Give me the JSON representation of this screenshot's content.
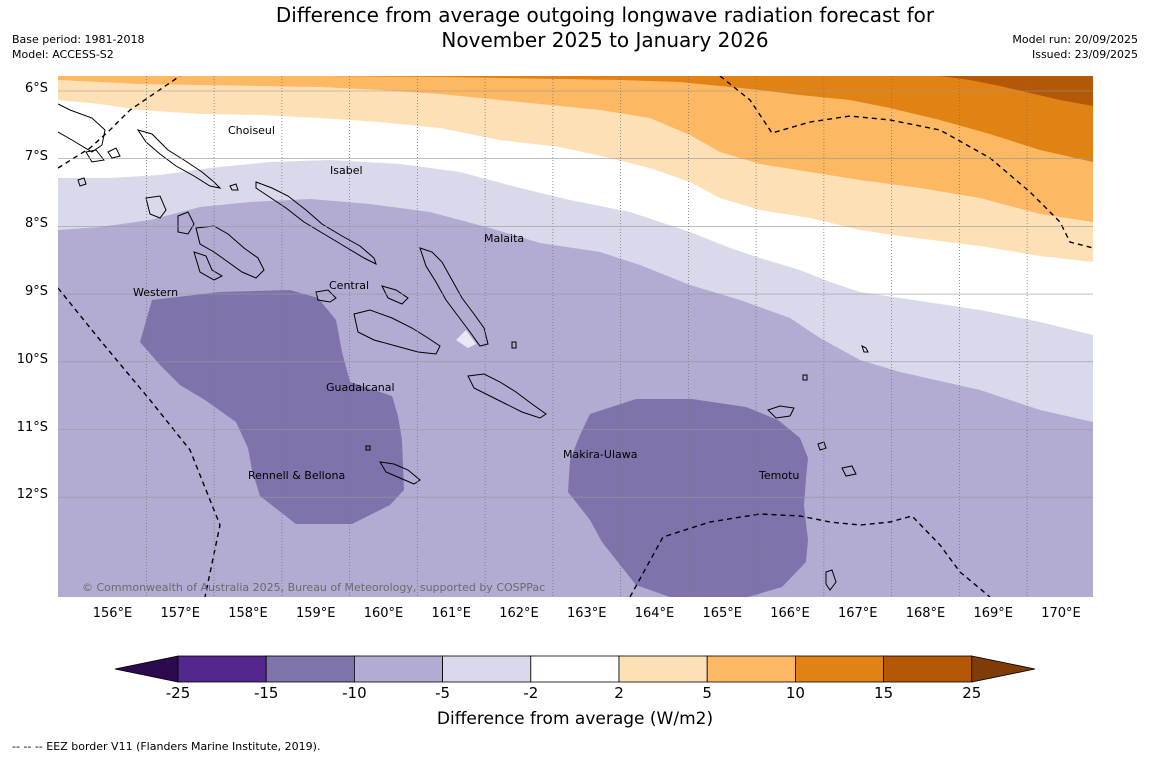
{
  "header": {
    "title_line1": "Difference from average outgoing longwave radiation forecast for",
    "title_line2": "November 2025 to January 2026",
    "base_period": "Base period: 1981-2018",
    "model": "Model: ACCESS-S2",
    "model_run": "Model run: 20/09/2025",
    "issued": "Issued: 23/09/2025"
  },
  "map": {
    "region": "Solomon Islands",
    "lat_labels": [
      "6°S",
      "7°S",
      "8°S",
      "9°S",
      "10°S",
      "11°S",
      "12°S"
    ],
    "lon_labels": [
      "156°E",
      "157°E",
      "158°E",
      "159°E",
      "160°E",
      "161°E",
      "162°E",
      "163°E",
      "164°E",
      "165°E",
      "166°E",
      "167°E",
      "168°E",
      "169°E",
      "170°E"
    ],
    "places": [
      {
        "name": "Choiseul"
      },
      {
        "name": "Isabel"
      },
      {
        "name": "Malaita"
      },
      {
        "name": "Western"
      },
      {
        "name": "Central"
      },
      {
        "name": "Guadalcanal"
      },
      {
        "name": "Makira-Ulawa"
      },
      {
        "name": "Rennell & Bellona"
      },
      {
        "name": "Temotu"
      }
    ],
    "copyright": "© Commonwealth of Australia 2025, Bureau of Meteorology, supported by COSPPac"
  },
  "legend": {
    "ticks": [
      "-25",
      "-15",
      "-10",
      "-5",
      "-2",
      "2",
      "5",
      "10",
      "15",
      "25"
    ],
    "label": "Difference from average (W/m2)",
    "colors": {
      "below_min": "#2d0a4e",
      "n25_n15": "#54278f",
      "n15_n10": "#8073ac",
      "n10_n5": "#b2abd2",
      "n5_n2": "#d8daeb",
      "n2_p2": "#ffffff",
      "p2_p5": "#fee0b6",
      "p5_p10": "#fdb863",
      "p10_p15": "#e08214",
      "p15_p25": "#b35806",
      "above_max": "#7f3b08"
    }
  },
  "footnote": "-- -- -- EEZ border V11 (Flanders Marine Institute, 2019)."
}
